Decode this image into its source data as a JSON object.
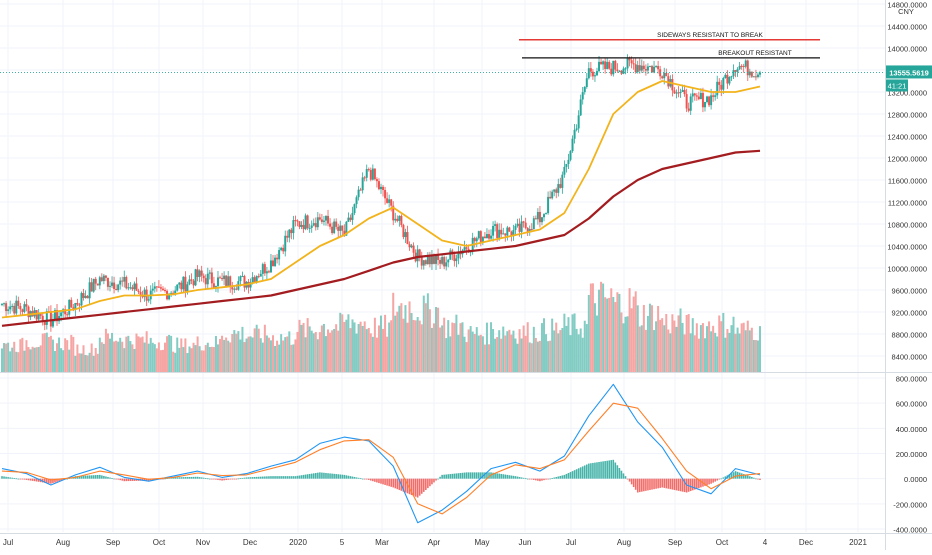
{
  "chart_data": [
    {
      "type": "candlestick",
      "panel": "price",
      "currency": "CNY",
      "ylim": [
        8000,
        14800
      ],
      "y_ticks": [
        "8400.0000",
        "8800.0000",
        "9200.0000",
        "9600.0000",
        "10000.0000",
        "10400.0000",
        "10800.0000",
        "11200.0000",
        "11600.0000",
        "12000.0000",
        "12400.0000",
        "12800.0000",
        "13200.0000",
        "13600.0000",
        "14000.0000",
        "14400.0000",
        "14800.0000"
      ],
      "y_tick_values": [
        8400,
        8800,
        9200,
        9600,
        10000,
        10400,
        10800,
        11200,
        11600,
        12000,
        12400,
        12800,
        13200,
        13600,
        14000,
        14400,
        14800
      ],
      "last_price_label": "13555.5619",
      "last_price": 13555.56,
      "countdown_label": "41:21",
      "candle_series": {
        "dates": [
          "2019-07-01",
          "2019-07-15",
          "2019-08-01",
          "2019-08-15",
          "2019-09-01",
          "2019-09-15",
          "2019-10-01",
          "2019-10-15",
          "2019-11-01",
          "2019-11-15",
          "2019-12-01",
          "2019-12-15",
          "2020-01-01",
          "2020-01-15",
          "2020-02-01",
          "2020-02-15",
          "2020-03-01",
          "2020-03-15",
          "2020-04-01",
          "2020-04-15",
          "2020-05-01",
          "2020-05-15",
          "2020-06-01",
          "2020-06-15",
          "2020-07-01",
          "2020-07-15",
          "2020-08-01",
          "2020-08-15",
          "2020-09-01",
          "2020-09-15",
          "2020-10-01",
          "2020-10-15"
        ],
        "close": [
          9350,
          9250,
          9050,
          9350,
          9800,
          9700,
          9500,
          9600,
          9850,
          9750,
          9750,
          10100,
          10800,
          10900,
          10600,
          11800,
          11000,
          10200,
          10100,
          10400,
          10700,
          10650,
          10900,
          11700,
          13600,
          13650,
          13700,
          13600,
          13000,
          13100,
          13700,
          13555
        ]
      },
      "series": [
        {
          "name": "",
          "color": "#f2b31b",
          "values": [
            9100,
            9150,
            9200,
            9250,
            9400,
            9500,
            9500,
            9520,
            9600,
            9650,
            9700,
            9800,
            10100,
            10400,
            10600,
            10900,
            11100,
            10800,
            10500,
            10400,
            10500,
            10600,
            10700,
            11000,
            11800,
            12800,
            13200,
            13400,
            13300,
            13200,
            13200,
            13300
          ]
        },
        {
          "name": "",
          "color": "#a31c1f",
          "values": [
            8950,
            9000,
            9050,
            9100,
            9150,
            9200,
            9250,
            9300,
            9350,
            9400,
            9450,
            9500,
            9600,
            9700,
            9800,
            9950,
            10100,
            10200,
            10250,
            10300,
            10350,
            10400,
            10500,
            10600,
            10900,
            11300,
            11600,
            11800,
            11900,
            12000,
            12100,
            12130
          ]
        }
      ],
      "annotations": [
        {
          "text": "SIDEWAYS RESISTANT TO BREAK",
          "price": 14150,
          "color": "#e53935"
        },
        {
          "text": "BREAKOUT RESISTANT",
          "price": 13820,
          "color": "#111111"
        }
      ],
      "volume": {
        "values": [
          35,
          40,
          38,
          30,
          45,
          42,
          40,
          35,
          38,
          50,
          48,
          45,
          55,
          60,
          65,
          58,
          85,
          80,
          60,
          50,
          55,
          52,
          55,
          60,
          95,
          90,
          75,
          65,
          60,
          62,
          55,
          50
        ]
      }
    },
    {
      "type": "line",
      "panel": "oscillator",
      "ylim": [
        -400,
        800
      ],
      "y_ticks": [
        "-400.0000",
        "-200.0000",
        "0.0000",
        "200.0000",
        "400.0000",
        "600.0000",
        "800.0000"
      ],
      "y_tick_values": [
        -400,
        -200,
        0,
        200,
        400,
        600,
        800
      ],
      "series": [
        {
          "name": "",
          "color": "#2196f3",
          "values": [
            80,
            40,
            -50,
            30,
            90,
            10,
            -20,
            20,
            60,
            10,
            40,
            100,
            150,
            280,
            330,
            300,
            100,
            -350,
            -250,
            -100,
            80,
            130,
            60,
            180,
            500,
            750,
            450,
            250,
            -50,
            -120,
            80,
            30
          ]
        },
        {
          "name": "",
          "color": "#ff7f27",
          "values": [
            60,
            50,
            -10,
            10,
            60,
            30,
            -5,
            10,
            45,
            25,
            30,
            80,
            130,
            230,
            300,
            310,
            170,
            -200,
            -280,
            -150,
            30,
            110,
            80,
            150,
            380,
            600,
            560,
            320,
            60,
            -80,
            20,
            40
          ]
        }
      ],
      "histogram": [
        20,
        -10,
        -40,
        20,
        30,
        -20,
        -15,
        10,
        15,
        -15,
        10,
        20,
        20,
        50,
        30,
        -10,
        -70,
        -150,
        30,
        50,
        50,
        20,
        -20,
        30,
        120,
        150,
        -110,
        -70,
        -110,
        -40,
        60,
        -10
      ]
    }
  ],
  "x_axis": {
    "labels": [
      "Jul",
      "Aug",
      "Sep",
      "Oct",
      "Nov",
      "Dec",
      "2020",
      "5",
      "Mar",
      "Apr",
      "May",
      "Jun",
      "Jul",
      "Aug",
      "Sep",
      "Oct",
      "4",
      "Dec",
      "2021"
    ]
  }
}
